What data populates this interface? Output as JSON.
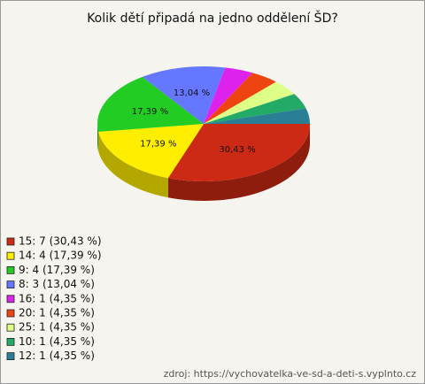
{
  "chart_data": {
    "type": "pie",
    "title": "Kolik dětí připadá na jedno oddělení ŠD?",
    "categories": [
      "15: 7 (30,43 %)",
      "14: 4 (17,39 %)",
      "9: 4 (17,39 %)",
      "8: 3 (13,04 %)",
      "16: 1 (4,35 %)",
      "20: 1 (4,35 %)",
      "25: 1 (4,35 %)",
      "10: 1 (4,35 %)",
      "12: 1 (4,35 %)"
    ],
    "values": [
      30.43,
      17.39,
      17.39,
      13.04,
      4.35,
      4.35,
      4.35,
      4.35,
      4.35
    ],
    "value_labels": [
      "30,43 %",
      "17,39 %",
      "17,39 %",
      "13,04 %",
      null,
      null,
      null,
      null,
      null
    ],
    "colors": [
      "#cc2a14",
      "#ffee00",
      "#22cc22",
      "#6677ff",
      "#dd22ee",
      "#ee4411",
      "#ddff88",
      "#22aa66",
      "#2a7f96"
    ],
    "legend": "bottom-left",
    "source": "zdroj: https://vychovatelka-ve-sd-a-deti-s.vyplnto.cz"
  }
}
